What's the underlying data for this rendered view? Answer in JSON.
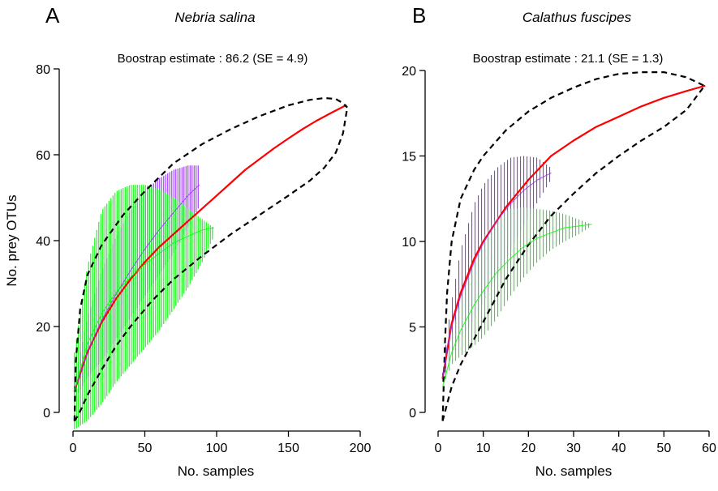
{
  "chart_data": [
    {
      "type": "line",
      "panel_label": "A",
      "title": "Nebria salina",
      "annotation": "Boostrap estimate : 86.2 (SE = 4.9)",
      "xlabel": "No. samples",
      "ylabel": "No. prey OTUs",
      "xlim": [
        0,
        200
      ],
      "ylim": [
        0,
        80
      ],
      "xticks": [
        0,
        50,
        100,
        150,
        200
      ],
      "yticks": [
        0,
        20,
        40,
        60,
        80
      ],
      "grid": false,
      "series": [
        {
          "color": "#ff0000",
          "style": "solid",
          "x": [
            1,
            10,
            20,
            30,
            40,
            50,
            60,
            70,
            80,
            90,
            100,
            110,
            120,
            130,
            140,
            150,
            160,
            170,
            180,
            190
          ],
          "y": [
            5,
            14,
            21,
            26.5,
            31,
            35,
            38.5,
            41.5,
            44.5,
            47.5,
            50.5,
            53.5,
            56.5,
            59,
            61.5,
            63.8,
            66,
            68,
            69.8,
            71.5
          ]
        },
        {
          "color": "#9b30ff",
          "style": "solid",
          "band": "vertical-hatch",
          "x": [
            1,
            10,
            20,
            30,
            40,
            50,
            60,
            70,
            80,
            88
          ],
          "y": [
            5,
            14,
            21.5,
            27.5,
            33,
            38,
            42.5,
            46.5,
            50.5,
            53
          ],
          "upper": [
            7,
            22,
            33,
            41,
            47,
            51.5,
            54.5,
            56.5,
            57.5,
            57.5
          ],
          "lower": [
            3,
            8,
            12,
            17,
            22,
            27,
            32,
            37,
            43,
            48
          ]
        },
        {
          "color": "#00ff00",
          "style": "solid",
          "band": "vertical-hatch",
          "x": [
            1,
            10,
            20,
            30,
            40,
            50,
            60,
            70,
            80,
            90,
            98
          ],
          "y": [
            5,
            16,
            23,
            28,
            31.5,
            34.5,
            37,
            39.5,
            41,
            42.5,
            43
          ],
          "upper": [
            14,
            34,
            47,
            51.5,
            53,
            53,
            52,
            50,
            47.5,
            45,
            43
          ],
          "lower": [
            -4,
            -2,
            2,
            7,
            11,
            15,
            19,
            24,
            29,
            35,
            41
          ]
        },
        {
          "color": "#000000",
          "style": "dashed",
          "role": "bootstrap-envelope-upper",
          "x": [
            1,
            2,
            5,
            10,
            20,
            35,
            50,
            70,
            90,
            110,
            130,
            150,
            165,
            175,
            183,
            188,
            191
          ],
          "y": [
            -2,
            12,
            24,
            32,
            39,
            46,
            51.5,
            58,
            62.5,
            66,
            69,
            71.5,
            72.8,
            73.2,
            73,
            72,
            71
          ]
        },
        {
          "color": "#000000",
          "style": "dashed",
          "role": "bootstrap-envelope-lower",
          "x": [
            1,
            3,
            6,
            10,
            20,
            30,
            40,
            55,
            70,
            90,
            110,
            130,
            150,
            165,
            175,
            183,
            188,
            191
          ],
          "y": [
            -2,
            -1,
            1,
            4,
            10,
            15.5,
            20,
            26,
            31,
            36.5,
            41.5,
            46,
            50.5,
            54,
            57,
            60.5,
            65,
            71
          ]
        }
      ]
    },
    {
      "type": "line",
      "panel_label": "B",
      "title": "Calathus fuscipes",
      "annotation": "Boostrap estimate : 21.1 (SE = 1.3)",
      "xlabel": "No. samples",
      "ylabel": "",
      "xlim": [
        0,
        60
      ],
      "ylim": [
        0,
        20
      ],
      "xticks": [
        0,
        10,
        20,
        30,
        40,
        50,
        60
      ],
      "yticks": [
        0,
        5,
        10,
        15,
        20
      ],
      "grid": false,
      "series": [
        {
          "color": "#ff0000",
          "style": "solid",
          "x": [
            1,
            3,
            5,
            8,
            10,
            15,
            20,
            25,
            30,
            35,
            40,
            45,
            50,
            55,
            59
          ],
          "y": [
            2,
            5.2,
            7,
            9,
            10,
            12,
            13.6,
            15,
            15.9,
            16.7,
            17.3,
            17.9,
            18.4,
            18.8,
            19.1
          ]
        },
        {
          "color": "#9b30ff",
          "style": "solid",
          "band": "vertical-hatch",
          "x": [
            1,
            2,
            3,
            5,
            8,
            10,
            13,
            16,
            19,
            22,
            25
          ],
          "y": [
            2,
            3.8,
            5,
            6.8,
            8.8,
            9.9,
            11.2,
            12.2,
            13,
            13.6,
            14
          ],
          "upper": [
            2.3,
            4.6,
            6.5,
            9.5,
            12.2,
            13.3,
            14.3,
            14.9,
            15,
            14.9,
            14.3
          ],
          "lower": [
            1.8,
            2.8,
            3.5,
            4.3,
            5.5,
            6.5,
            8,
            9.5,
            11,
            12.3,
            13.6
          ]
        },
        {
          "color": "#00ff00",
          "style": "solid",
          "band": "vertical-hatch",
          "x": [
            1,
            3,
            5,
            8,
            10,
            13,
            16,
            19,
            22,
            25,
            28,
            31,
            34
          ],
          "y": [
            1.5,
            3.5,
            4.8,
            6.3,
            7.1,
            8.2,
            9,
            9.7,
            10.2,
            10.5,
            10.8,
            10.9,
            11
          ],
          "upper": [
            1.5,
            4.5,
            6.5,
            9,
            10.3,
            11.4,
            11.9,
            12,
            11.9,
            11.8,
            11.6,
            11.3,
            11
          ],
          "lower": [
            1.5,
            2.8,
            3.3,
            3.9,
            4.4,
            5.5,
            6.8,
            7.9,
            8.8,
            9.5,
            10,
            10.4,
            10.9
          ]
        },
        {
          "color": "#000000",
          "style": "dashed",
          "role": "bootstrap-envelope-upper",
          "x": [
            1,
            1.5,
            2,
            3,
            5,
            8,
            10,
            15,
            20,
            25,
            30,
            35,
            40,
            45,
            50,
            55,
            59
          ],
          "y": [
            -0.5,
            4,
            7,
            10,
            12.5,
            14.2,
            15,
            16.5,
            17.6,
            18.4,
            19,
            19.5,
            19.8,
            19.9,
            19.9,
            19.6,
            19.1
          ]
        },
        {
          "color": "#000000",
          "style": "dashed",
          "role": "bootstrap-envelope-lower",
          "x": [
            1,
            2,
            3,
            5,
            8,
            10,
            15,
            20,
            25,
            30,
            35,
            40,
            45,
            50,
            55,
            59
          ],
          "y": [
            -0.5,
            0.5,
            1.5,
            2.8,
            4.3,
            5.3,
            7.8,
            9.8,
            11.5,
            12.8,
            14,
            15,
            15.9,
            16.7,
            17.7,
            19.1
          ]
        }
      ]
    }
  ]
}
